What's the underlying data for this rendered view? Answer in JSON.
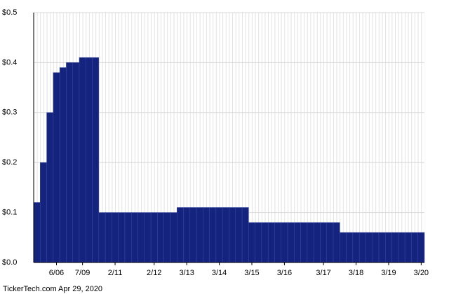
{
  "chart_data": {
    "type": "bar",
    "categories": [
      null,
      null,
      null,
      "6/06",
      null,
      null,
      null,
      "7/09",
      null,
      null,
      null,
      null,
      "2/11",
      null,
      null,
      null,
      null,
      null,
      "2/12",
      null,
      null,
      null,
      null,
      "3/13",
      null,
      null,
      null,
      null,
      "3/14",
      null,
      null,
      null,
      null,
      "3/15",
      null,
      null,
      null,
      null,
      "3/16",
      null,
      null,
      null,
      null,
      null,
      "3/17",
      null,
      null,
      null,
      null,
      "3/18",
      null,
      null,
      null,
      null,
      "3/19",
      null,
      null,
      null,
      null,
      "3/20"
    ],
    "values": [
      0.12,
      0.2,
      0.3,
      0.38,
      0.39,
      0.4,
      0.4,
      0.41,
      0.41,
      0.41,
      0.1,
      0.1,
      0.1,
      0.1,
      0.1,
      0.1,
      0.1,
      0.1,
      0.1,
      0.1,
      0.1,
      0.1,
      0.11,
      0.11,
      0.11,
      0.11,
      0.11,
      0.11,
      0.11,
      0.11,
      0.11,
      0.11,
      0.11,
      0.08,
      0.08,
      0.08,
      0.08,
      0.08,
      0.08,
      0.08,
      0.08,
      0.08,
      0.08,
      0.08,
      0.08,
      0.08,
      0.08,
      0.06,
      0.06,
      0.06,
      0.06,
      0.06,
      0.06,
      0.06,
      0.06,
      0.06,
      0.06,
      0.06,
      0.06,
      0.06
    ],
    "color": "#14237d",
    "ylim": [
      0,
      0.5
    ],
    "yticks": [
      {
        "value": 0,
        "label": "$0.0"
      },
      {
        "value": 0.1,
        "label": "$0.1"
      },
      {
        "value": 0.2,
        "label": "$0.2"
      },
      {
        "value": 0.3,
        "label": "$0.3"
      },
      {
        "value": 0.4,
        "label": "$0.4"
      },
      {
        "value": 0.5,
        "label": "$0.5"
      }
    ],
    "grid": true,
    "source": "TickerTech.com  Apr 29, 2020"
  }
}
